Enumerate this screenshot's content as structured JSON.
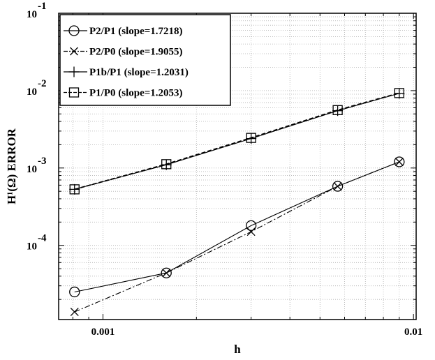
{
  "chart_data": {
    "type": "line",
    "xlabel": "h",
    "ylabel": "H¹(Ω) ERROR",
    "x_scale": "log",
    "y_scale": "log",
    "xlim": [
      0.00072,
      0.0102
    ],
    "ylim": [
      1.1e-05,
      0.1
    ],
    "x_ticks": [
      {
        "value": 0.001,
        "label": "0.001"
      },
      {
        "value": 0.01,
        "label": "0.01"
      }
    ],
    "y_ticks": [
      {
        "value": 0.1,
        "base": "10",
        "exp": "-1"
      },
      {
        "value": 0.01,
        "base": "10",
        "exp": "-2"
      },
      {
        "value": 0.001,
        "base": "10",
        "exp": "-3"
      },
      {
        "value": 0.0001,
        "base": "10",
        "exp": "-4"
      }
    ],
    "grid": true,
    "legend_position": "top-left",
    "series": [
      {
        "name": "P2/P1  (slope=1.7218)",
        "marker": "circle",
        "line": "solid",
        "x": [
          0.00081,
          0.0016,
          0.003,
          0.0057,
          0.009
        ],
        "y": [
          2.5e-05,
          4.4e-05,
          0.00018,
          0.00058,
          0.0012
        ]
      },
      {
        "name": "P2/P0  (slope=1.9055)",
        "marker": "x",
        "line": "dashdot",
        "x": [
          0.00081,
          0.0016,
          0.003,
          0.0057,
          0.009
        ],
        "y": [
          1.38e-05,
          4.4e-05,
          0.00015,
          0.00058,
          0.0012
        ]
      },
      {
        "name": "P1b/P1  (slope=1.2031)",
        "marker": "plus",
        "line": "solid",
        "x": [
          0.00081,
          0.0016,
          0.003,
          0.0057,
          0.009
        ],
        "y": [
          0.00053,
          0.0011,
          0.0024,
          0.0055,
          0.0092
        ]
      },
      {
        "name": "P1/P0  (slope=1.2053)",
        "marker": "square",
        "line": "dashed",
        "x": [
          0.00081,
          0.0016,
          0.003,
          0.0057,
          0.009
        ],
        "y": [
          0.00053,
          0.00112,
          0.00245,
          0.0056,
          0.0093
        ]
      }
    ]
  }
}
